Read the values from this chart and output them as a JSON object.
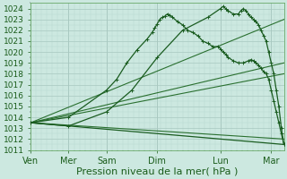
{
  "xlabel": "Pression niveau de la mer( hPa )",
  "ylim": [
    1011,
    1024.5
  ],
  "yticks": [
    1011,
    1012,
    1013,
    1014,
    1015,
    1016,
    1017,
    1018,
    1019,
    1020,
    1021,
    1022,
    1023,
    1024
  ],
  "xtick_labels": [
    "Ven",
    "Mer",
    "Sam",
    "Dim",
    "Lun",
    "Mar"
  ],
  "xtick_positions": [
    0.0,
    0.75,
    1.5,
    2.5,
    3.75,
    4.75
  ],
  "xlim": [
    0,
    5.0
  ],
  "bg_color": "#cce8e0",
  "grid_major_color": "#a8c8c0",
  "grid_minor_color": "#b8d8d0",
  "line_color_dark": "#1a5c20",
  "line_color_mid": "#2a7030",
  "series": [
    {
      "points": [
        [
          0.0,
          1013.5
        ],
        [
          0.75,
          1014.0
        ],
        [
          1.5,
          1016.5
        ],
        [
          1.7,
          1017.5
        ],
        [
          1.9,
          1019.0
        ],
        [
          2.1,
          1020.2
        ],
        [
          2.3,
          1021.2
        ],
        [
          2.4,
          1021.8
        ],
        [
          2.45,
          1022.2
        ],
        [
          2.5,
          1022.6
        ],
        [
          2.55,
          1023.0
        ],
        [
          2.6,
          1023.2
        ],
        [
          2.65,
          1023.3
        ],
        [
          2.7,
          1023.5
        ],
        [
          2.75,
          1023.4
        ],
        [
          2.8,
          1023.2
        ],
        [
          2.9,
          1022.8
        ],
        [
          3.0,
          1022.5
        ],
        [
          3.1,
          1022.0
        ],
        [
          3.2,
          1021.8
        ],
        [
          3.3,
          1021.5
        ],
        [
          3.4,
          1021.0
        ],
        [
          3.5,
          1020.8
        ],
        [
          3.6,
          1020.5
        ],
        [
          3.7,
          1020.5
        ],
        [
          3.75,
          1020.3
        ],
        [
          3.8,
          1020.0
        ],
        [
          3.85,
          1019.8
        ],
        [
          3.9,
          1019.5
        ],
        [
          4.0,
          1019.2
        ],
        [
          4.1,
          1019.0
        ],
        [
          4.2,
          1019.0
        ],
        [
          4.3,
          1019.2
        ],
        [
          4.35,
          1019.3
        ],
        [
          4.4,
          1019.2
        ],
        [
          4.45,
          1019.0
        ],
        [
          4.5,
          1018.8
        ],
        [
          4.55,
          1018.5
        ],
        [
          4.6,
          1018.2
        ],
        [
          4.65,
          1018.0
        ],
        [
          4.7,
          1017.5
        ],
        [
          4.75,
          1016.5
        ],
        [
          4.8,
          1015.5
        ],
        [
          4.85,
          1014.5
        ],
        [
          4.9,
          1013.5
        ],
        [
          4.95,
          1012.5
        ],
        [
          5.0,
          1011.5
        ]
      ],
      "style": "markers",
      "color": "#1a5c20",
      "linewidth": 0.9,
      "marker": "+"
    },
    {
      "points": [
        [
          0.0,
          1013.5
        ],
        [
          5.0,
          1023.0
        ]
      ],
      "style": "line",
      "color": "#2a7030",
      "linewidth": 0.8
    },
    {
      "points": [
        [
          0.0,
          1013.5
        ],
        [
          5.0,
          1019.0
        ]
      ],
      "style": "line",
      "color": "#2a7030",
      "linewidth": 0.8
    },
    {
      "points": [
        [
          0.0,
          1013.5
        ],
        [
          5.0,
          1018.0
        ]
      ],
      "style": "line",
      "color": "#2a7030",
      "linewidth": 0.8
    },
    {
      "points": [
        [
          0.0,
          1013.5
        ],
        [
          5.0,
          1012.0
        ]
      ],
      "style": "line",
      "color": "#2a7030",
      "linewidth": 0.8
    },
    {
      "points": [
        [
          0.0,
          1013.5
        ],
        [
          5.0,
          1011.5
        ]
      ],
      "style": "line",
      "color": "#1a5c20",
      "linewidth": 0.9
    },
    {
      "points": [
        [
          0.0,
          1013.5
        ],
        [
          0.75,
          1013.2
        ],
        [
          1.5,
          1014.5
        ],
        [
          2.0,
          1016.5
        ],
        [
          2.5,
          1019.5
        ],
        [
          3.0,
          1022.0
        ],
        [
          3.5,
          1023.2
        ],
        [
          3.75,
          1024.0
        ],
        [
          3.8,
          1024.2
        ],
        [
          3.85,
          1024.0
        ],
        [
          3.9,
          1023.8
        ],
        [
          4.0,
          1023.5
        ],
        [
          4.1,
          1023.5
        ],
        [
          4.15,
          1023.8
        ],
        [
          4.2,
          1024.0
        ],
        [
          4.25,
          1023.8
        ],
        [
          4.3,
          1023.5
        ],
        [
          4.35,
          1023.2
        ],
        [
          4.4,
          1023.0
        ],
        [
          4.45,
          1022.8
        ],
        [
          4.5,
          1022.5
        ],
        [
          4.55,
          1022.0
        ],
        [
          4.6,
          1021.5
        ],
        [
          4.65,
          1021.0
        ],
        [
          4.7,
          1020.0
        ],
        [
          4.75,
          1019.0
        ],
        [
          4.8,
          1018.0
        ],
        [
          4.85,
          1016.5
        ],
        [
          4.9,
          1015.0
        ],
        [
          4.95,
          1013.0
        ],
        [
          5.0,
          1011.5
        ]
      ],
      "style": "markers",
      "color": "#1a5c20",
      "linewidth": 0.9,
      "marker": "+"
    }
  ],
  "xlabel_fontsize": 8,
  "ytick_fontsize": 6.5,
  "xtick_fontsize": 7
}
